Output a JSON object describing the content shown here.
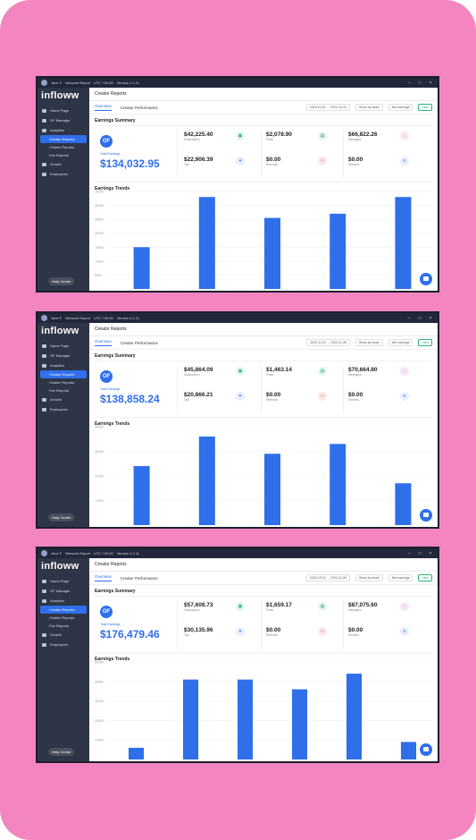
{
  "app": {
    "user": "Jane F",
    "network": "Network Report",
    "timezone": "UTC +00:00",
    "version": "Version 4.2.11",
    "logo": "infloww",
    "page_title": "Creator Reports",
    "help": "Help Center"
  },
  "sidebar": {
    "items": [
      {
        "label": "Home Page"
      },
      {
        "label": "OF Manager"
      },
      {
        "label": "Analytics"
      },
      {
        "label": "Creator Reports"
      },
      {
        "label": "Chatter Reports"
      },
      {
        "label": "Fan Reports"
      },
      {
        "label": "Growth"
      },
      {
        "label": "Employees"
      }
    ]
  },
  "tabs": [
    "Overview",
    "Creator Performance"
  ],
  "filters": {
    "group": "Show by week",
    "metric": "Net earnings",
    "view": "View"
  },
  "labels": {
    "summary": "Earnings Summary",
    "trends": "Earnings Trends",
    "total": "Total Earnings",
    "subs": "Subscription",
    "posts": "Posts",
    "msgs": "Messages",
    "tips": "Tips",
    "refs": "Referrals",
    "streams": "Streams"
  },
  "accent": "#2f6fea",
  "screens": [
    {
      "date_from": "2023-10-01",
      "date_to": "2023-10-31",
      "total": "$134,032.95",
      "subs": "$42,225.40",
      "posts": "$2,078.90",
      "msgs": "$66,822.26",
      "tips": "$22,906.39",
      "refs": "$0.00",
      "streams": "$0.00",
      "chart_data": {
        "type": "bar",
        "values": [
          15000,
          33000,
          25500,
          27000,
          33000
        ],
        "ylim": [
          0,
          35000
        ],
        "yticks": [
          "35000",
          "30000",
          "25000",
          "20000",
          "15000",
          "10000",
          "5000"
        ]
      }
    },
    {
      "date_from": "2023-11-01",
      "date_to": "2023-11-30",
      "total": "$138,858.24",
      "subs": "$45,864.09",
      "posts": "$1,463.14",
      "msgs": "$70,664.80",
      "tips": "$20,866.21",
      "refs": "$0.00",
      "streams": "$0.00",
      "chart_data": {
        "type": "bar",
        "values": [
          24000,
          36000,
          29000,
          33000,
          17000
        ],
        "ylim": [
          0,
          40000
        ],
        "yticks": [
          "40000",
          "30000",
          "20000",
          "10000"
        ]
      }
    },
    {
      "date_from": "2023-10-01",
      "date_to": "2023-11-30",
      "total": "$176,479.46",
      "subs": "$57,608.73",
      "posts": "$1,659.17",
      "msgs": "$87,075.60",
      "tips": "$30,135.96",
      "refs": "$0.00",
      "streams": "$0.00",
      "chart_data": {
        "type": "bar",
        "values": [
          6000,
          41000,
          41000,
          36000,
          44000,
          9000
        ],
        "ylim": [
          0,
          50000
        ],
        "yticks": [
          "50000",
          "40000",
          "30000",
          "20000",
          "10000"
        ]
      }
    }
  ]
}
